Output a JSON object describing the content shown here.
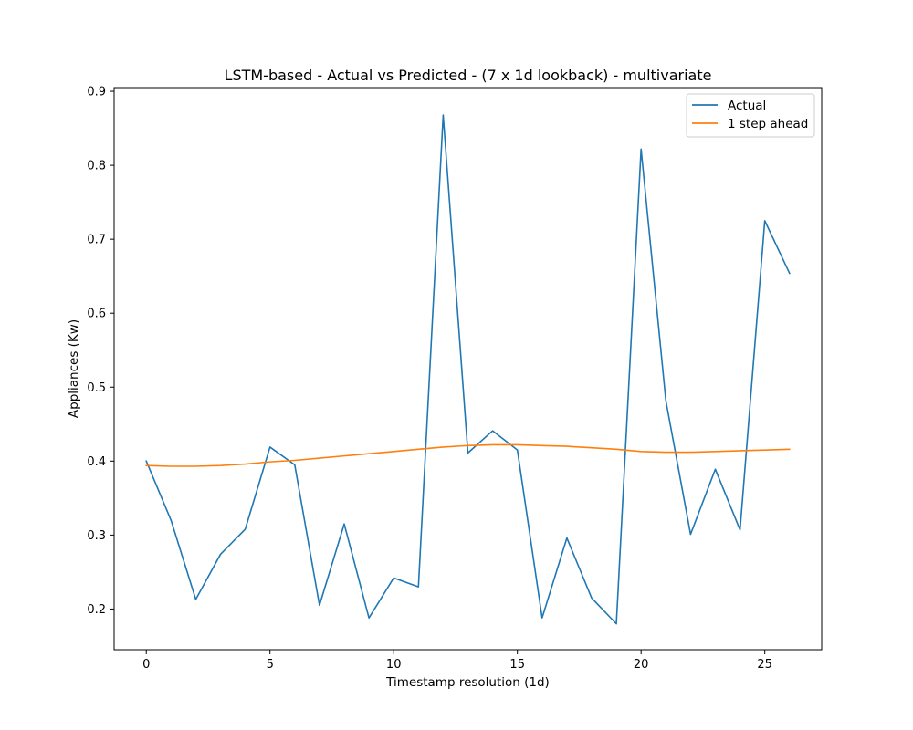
{
  "chart_data": {
    "type": "line",
    "title": "LSTM-based - Actual vs Predicted - (7 x 1d lookback) - multivariate",
    "xlabel": "Timestamp resolution (1d)",
    "ylabel": "Appliances (Kw)",
    "xlim": [
      -1.3,
      27.3
    ],
    "ylim": [
      0.145,
      0.905
    ],
    "xticks": [
      0,
      5,
      10,
      15,
      20,
      25
    ],
    "xtick_labels": [
      "0",
      "5",
      "10",
      "15",
      "20",
      "25"
    ],
    "yticks": [
      0.2,
      0.3,
      0.4,
      0.5,
      0.6,
      0.7,
      0.8,
      0.9
    ],
    "ytick_labels": [
      "0.2",
      "0.3",
      "0.4",
      "0.5",
      "0.6",
      "0.7",
      "0.8",
      "0.9"
    ],
    "grid": false,
    "legend_position": "top-right",
    "x": [
      0,
      1,
      2,
      3,
      4,
      5,
      6,
      7,
      8,
      9,
      10,
      11,
      12,
      13,
      14,
      15,
      16,
      17,
      18,
      19,
      20,
      21,
      22,
      23,
      24,
      25,
      26
    ],
    "series": [
      {
        "name": "Actual",
        "color": "#1f77b4",
        "values": [
          0.4,
          0.32,
          0.213,
          0.274,
          0.308,
          0.419,
          0.395,
          0.205,
          0.315,
          0.188,
          0.242,
          0.23,
          0.868,
          0.411,
          0.441,
          0.415,
          0.188,
          0.296,
          0.215,
          0.18,
          0.822,
          0.482,
          0.301,
          0.389,
          0.307,
          0.725,
          0.654
        ]
      },
      {
        "name": "1 step ahead",
        "color": "#ff7f0e",
        "values": [
          0.394,
          0.393,
          0.393,
          0.394,
          0.396,
          0.399,
          0.401,
          0.404,
          0.407,
          0.41,
          0.413,
          0.416,
          0.419,
          0.421,
          0.422,
          0.422,
          0.421,
          0.42,
          0.418,
          0.416,
          0.413,
          0.412,
          0.412,
          0.413,
          0.414,
          0.415,
          0.416
        ]
      }
    ]
  }
}
